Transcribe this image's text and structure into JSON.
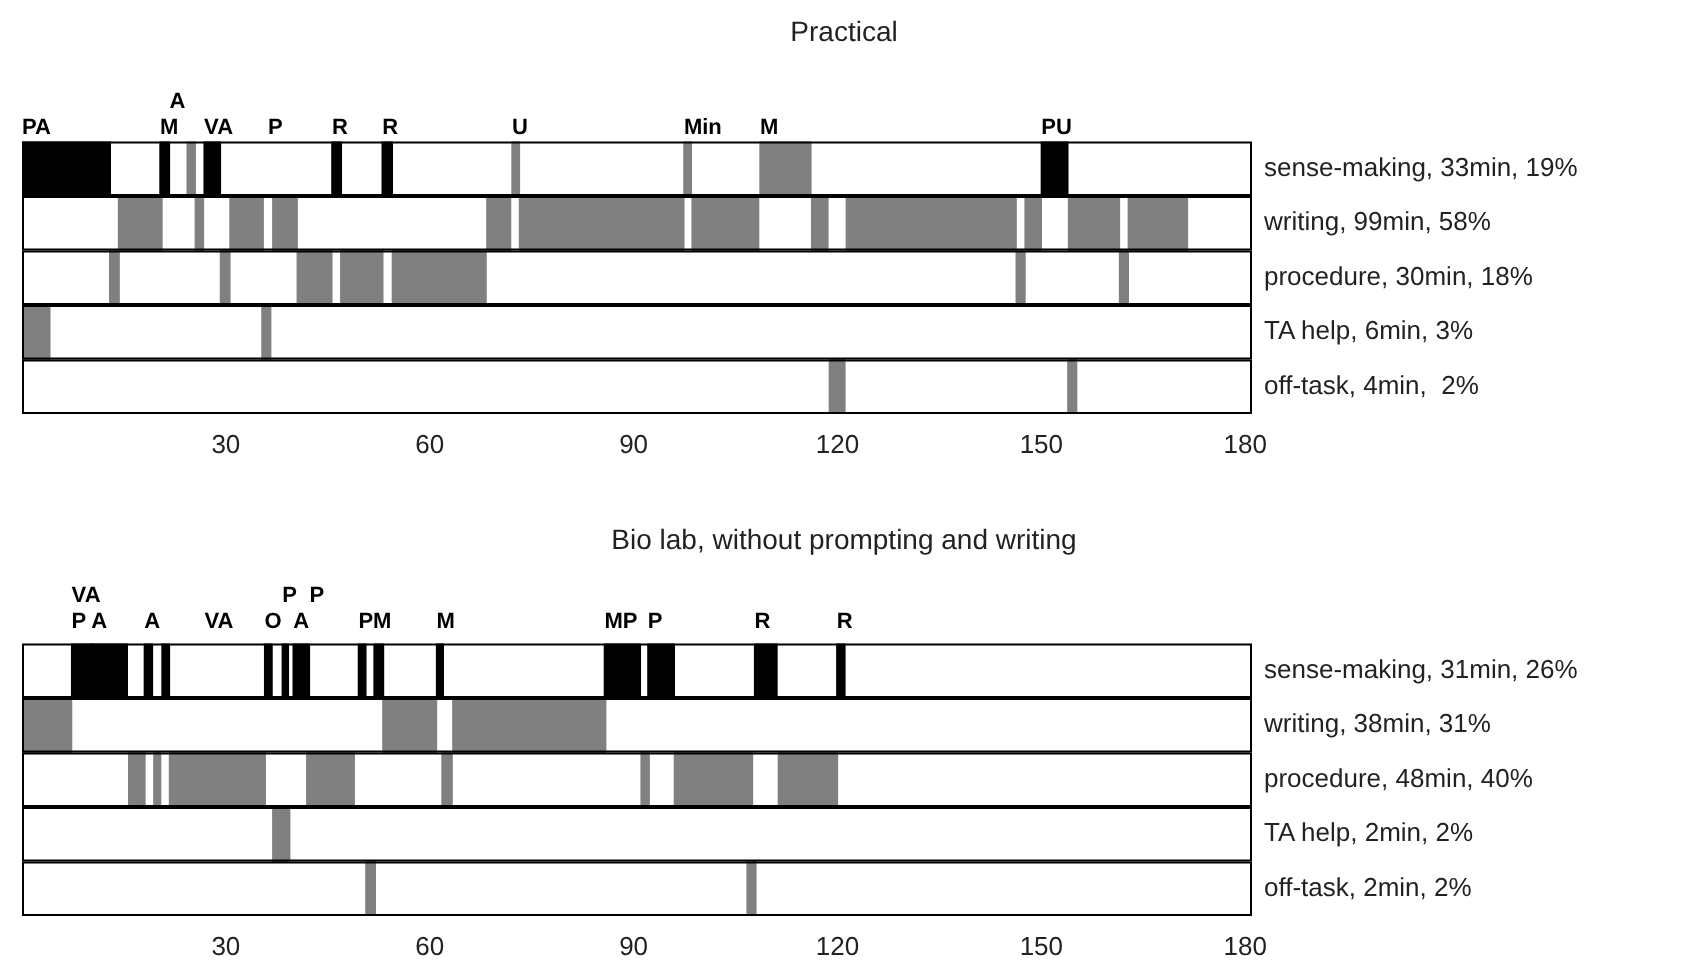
{
  "chart_data": [
    {
      "type": "bar",
      "orientation": "horizontal",
      "title": "Practical",
      "categories": [
        "sense-making, 33min, 19%",
        "writing, 99min, 58%",
        "procedure, 30min, 18%",
        "TA help, 6min, 3%",
        "off-task, 4min,  2%"
      ],
      "xlim": [
        0,
        181
      ],
      "xticks": [
        30,
        60,
        90,
        120,
        150,
        180
      ],
      "series": [
        {
          "colors": [
            "#000000",
            "#808080",
            "#808080",
            "#808080",
            "#808080"
          ],
          "base": [
            0,
            14.2,
            12.9,
            0,
            118.8
          ],
          "values": [
            13,
            6.4,
            1.4,
            4.1,
            2.3
          ]
        },
        {
          "colors": [
            "#000000",
            "#808080",
            "#808080",
            "#808080",
            "#808080"
          ],
          "base": [
            20.3,
            25.5,
            29.2,
            35.3,
            153.9
          ],
          "values": [
            1.4,
            1.2,
            1.4,
            1.3,
            1.3
          ]
        },
        {
          "color": "#808080",
          "base": [
            24.3,
            30.6,
            40.5,
            null,
            null
          ],
          "values": [
            1.2,
            4.9,
            5.1,
            null,
            null
          ]
        },
        {
          "colors": [
            "#000000",
            "#808080",
            "#808080",
            "#808080",
            "#808080"
          ],
          "base": [
            26.8,
            36.9,
            46.9,
            null,
            null
          ],
          "values": [
            2.4,
            3.6,
            6.2,
            null,
            null
          ]
        },
        {
          "colors": [
            "#000000",
            "#808080",
            "#808080",
            "#808080",
            "#808080"
          ],
          "base": [
            45.6,
            68.4,
            54.5,
            null,
            null
          ],
          "values": [
            1.4,
            3.5,
            13.8,
            null,
            null
          ]
        },
        {
          "colors": [
            "#000000",
            "#808080",
            "#808080",
            "#808080",
            "#808080"
          ],
          "base": [
            53,
            73.2,
            146.3,
            null,
            null
          ],
          "values": [
            1.5,
            24.2,
            1.3,
            null,
            null
          ]
        },
        {
          "color": "#808080",
          "base": [
            72.1,
            98.6,
            161.5,
            null,
            null
          ],
          "values": [
            1.1,
            9.8,
            1.3,
            null,
            null
          ]
        },
        {
          "color": "#808080",
          "base": [
            97.4,
            116.2,
            null,
            null,
            null
          ],
          "values": [
            1.1,
            2.4,
            null,
            null,
            null
          ]
        },
        {
          "color": "#808080",
          "base": [
            108.6,
            121.3,
            null,
            null,
            null
          ],
          "values": [
            7.5,
            25,
            null,
            null,
            null
          ]
        },
        {
          "colors": [
            "#000000",
            "#808080",
            "#808080",
            "#808080",
            "#808080"
          ],
          "base": [
            150,
            147.6,
            null,
            null,
            null
          ],
          "values": [
            3.9,
            2.4,
            null,
            null,
            null
          ]
        },
        {
          "color": "#808080",
          "base": [
            null,
            154,
            null,
            null,
            null
          ],
          "values": [
            null,
            7.5,
            null,
            null,
            null
          ]
        },
        {
          "color": "#808080",
          "base": [
            null,
            162.8,
            null,
            null,
            null
          ],
          "values": [
            null,
            8.7,
            null,
            null,
            null
          ]
        }
      ],
      "annotations": [
        {
          "text": "PA",
          "x": 0,
          "y": "sense-making, 33min, 19%"
        },
        {
          "text": "M",
          "x": 20.3,
          "y": "sense-making, 33min, 19%"
        },
        {
          "text": "A",
          "x": 21.7,
          "y": "sense-making, 33min, 19%"
        },
        {
          "text": "VA",
          "x": 26.8,
          "y": "sense-making, 33min, 19%"
        },
        "P",
        {
          "text": "R",
          "x": 45.6,
          "y": "sense-making, 33min, 19%"
        },
        {
          "text": "R",
          "x": 53,
          "y": "sense-making, 33min, 19%"
        },
        {
          "text": "U",
          "x": 72.1,
          "y": "sense-making, 33min, 19%"
        },
        {
          "text": "Min",
          "x": 97.4,
          "y": "sense-making, 33min, 19%"
        },
        {
          "text": "M",
          "x": 108.6,
          "y": "sense-making, 33min, 19%"
        },
        {
          "text": "PU",
          "x": 150,
          "y": "sense-making, 33min, 19%"
        }
      ]
    },
    {
      "type": "bar",
      "orientation": "horizontal",
      "title": "Bio lab, without prompting and writing",
      "categories": [
        "sense-making, 31min, 26%",
        "writing, 38min, 31%",
        "procedure, 48min, 40%",
        "TA help, 2min, 2%",
        "off-task, 2min, 2%"
      ],
      "xlim": [
        0,
        181
      ],
      "xticks": [
        30,
        60,
        90,
        120,
        150,
        180
      ],
      "series": [
        {
          "colors": [
            "#000000",
            "#808080",
            "#808080",
            "#808080",
            "#808080"
          ],
          "base": [
            7.3,
            0,
            15.7,
            36.9,
            50.6
          ],
          "values": [
            2.9,
            7.3,
            2.4,
            2.5,
            1.4
          ]
        },
        {
          "colors": [
            "#000000",
            "#808080",
            "#808080",
            "#808080",
            "#808080"
          ],
          "base": [
            18,
            53.1,
            19.4,
            null,
            106.7
          ],
          "values": [
            1.2,
            7.9,
            1,
            null,
            1.3
          ]
        },
        {
          "colors": [
            "#000000",
            "#808080",
            "#808080",
            "#808080",
            "#808080"
          ],
          "base": [
            20.6,
            63.4,
            21.7,
            null,
            null
          ],
          "values": [
            1.1,
            22.5,
            14.1,
            null,
            null
          ]
        },
        {
          "colors": [
            "#000000",
            "#808080",
            "#808080",
            "#808080",
            "#808080"
          ],
          "base": [
            35.7,
            null,
            41.9,
            null,
            null
          ],
          "values": [
            1.1,
            null,
            7,
            null,
            null
          ]
        },
        {
          "colors": [
            "#000000",
            "#808080",
            "#808080",
            "#808080",
            "#808080"
          ],
          "base": [
            38.3,
            null,
            61.8,
            null,
            null
          ],
          "values": [
            0.9,
            null,
            1.5,
            null,
            null
          ]
        },
        {
          "colors": [
            "#000000",
            "#808080",
            "#808080",
            "#808080",
            "#808080"
          ],
          "base": [
            39.9,
            null,
            91.1,
            null,
            null
          ],
          "values": [
            2.4,
            null,
            1.2,
            null,
            null
          ]
        },
        {
          "colors": [
            "#000000",
            "#808080",
            "#808080",
            "#808080",
            "#808080"
          ],
          "base": [
            49.5,
            null,
            96,
            null,
            null
          ],
          "values": [
            1.1,
            null,
            11.5,
            null,
            null
          ]
        },
        {
          "colors": [
            "#000000",
            "#808080",
            "#808080",
            "#808080",
            "#808080"
          ],
          "base": [
            51.8,
            null,
            111.3,
            null,
            null
          ],
          "values": [
            1.4,
            null,
            8.7,
            null,
            null
          ]
        },
        {
          "color": "#000000",
          "base": [
            61,
            null,
            null,
            null,
            null
          ],
          "values": [
            1,
            null,
            null,
            null,
            null
          ]
        },
        {
          "color": "#000000",
          "base": [
            85.7,
            null,
            null,
            null,
            null
          ],
          "values": [
            5.3,
            null,
            null,
            null,
            null
          ]
        },
        {
          "color": "#000000",
          "base": [
            92.1,
            null,
            null,
            null,
            null
          ],
          "values": [
            3.9,
            null,
            null,
            null,
            null
          ]
        },
        {
          "color": "#000000",
          "base": [
            107.8,
            null,
            null,
            null,
            null
          ],
          "values": [
            3.3,
            null,
            null,
            null,
            null
          ]
        },
        {
          "color": "#000000",
          "base": [
            119.9,
            null,
            null,
            null,
            null
          ],
          "values": [
            1.2,
            null,
            null,
            null,
            null
          ]
        },
        {
          "color": "#000000",
          "base": [
            10.2,
            null,
            null,
            null,
            null
          ],
          "values": [
            5.3,
            null,
            null,
            null,
            null
          ]
        }
      ],
      "annotations": [
        {
          "text": "P",
          "x": 7.3,
          "y": "sense-making, 31min, 26%"
        },
        {
          "text": "VA",
          "x": 7.3,
          "y": "sense-making, 31min, 26%"
        },
        {
          "text": "A",
          "x": 10.2,
          "y": "sense-making, 31min, 26%"
        },
        {
          "text": "A",
          "x": 18,
          "y": "sense-making, 31min, 26%"
        },
        "VA",
        {
          "text": "O",
          "x": 35.7,
          "y": "sense-making, 31min, 26%"
        },
        {
          "text": "P",
          "x": 38.3,
          "y": "sense-making, 31min, 26%"
        },
        {
          "text": "A",
          "x": 39.9,
          "y": "sense-making, 31min, 26%"
        },
        {
          "text": "P",
          "x": 42.3,
          "y": "sense-making, 31min, 26%"
        },
        {
          "text": "PM",
          "x": 49.5,
          "y": "sense-making, 31min, 26%"
        },
        {
          "text": "M",
          "x": 61,
          "y": "sense-making, 31min, 26%"
        },
        {
          "text": "MP",
          "x": 85.7,
          "y": "sense-making, 31min, 26%"
        },
        {
          "text": "P",
          "x": 92.1,
          "y": "sense-making, 31min, 26%"
        },
        {
          "text": "R",
          "x": 107.8,
          "y": "sense-making, 31min, 26%"
        },
        {
          "text": "R",
          "x": 119.9,
          "y": "sense-making, 31min, 26%"
        }
      ]
    }
  ]
}
